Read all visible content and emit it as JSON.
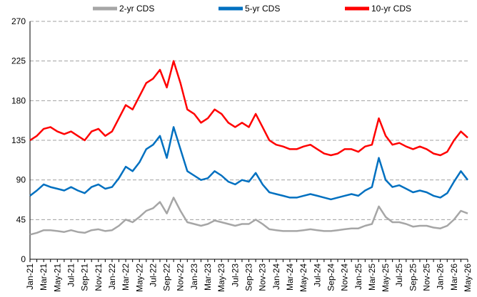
{
  "chart_data": {
    "type": "line",
    "categories": [
      "Jan-21",
      null,
      "Mar-21",
      null,
      "May-21",
      null,
      "Jul-21",
      null,
      "Sep-21",
      null,
      "Nov-21",
      null,
      "Jan-22",
      null,
      "Mar-22",
      null,
      "May-22",
      null,
      "Jul-22",
      null,
      "Sep-22",
      null,
      "Nov-22",
      null,
      "Jan-23",
      null,
      "Mar-23",
      null,
      "May-23",
      null,
      "Jul-23",
      null,
      "Sep-23",
      null,
      "Nov-23",
      null,
      "Jan-24",
      null,
      "Mar-24",
      null,
      "May-24",
      null,
      "Jul-24",
      null,
      "Sep-24",
      null,
      "Nov-24",
      null,
      "Jan-25",
      null,
      "Mar-25",
      null,
      "May-25",
      null,
      "Jul-25",
      null,
      "Sep-25",
      null,
      "Nov-25",
      null,
      "Jan-26",
      null,
      "Mar-26",
      null,
      "May-26"
    ],
    "series": [
      {
        "name": "2-yr CDS",
        "color": "#a6a6a6",
        "values": [
          28,
          30,
          33,
          33,
          32,
          31,
          33,
          31,
          30,
          33,
          34,
          32,
          33,
          38,
          45,
          42,
          48,
          55,
          58,
          65,
          52,
          70,
          55,
          42,
          40,
          38,
          40,
          44,
          42,
          40,
          38,
          40,
          40,
          45,
          40,
          34,
          33,
          32,
          32,
          32,
          33,
          34,
          33,
          32,
          32,
          33,
          34,
          35,
          35,
          38,
          40,
          60,
          48,
          42,
          42,
          40,
          37,
          38,
          38,
          36,
          35,
          38,
          45,
          55,
          52
        ]
      },
      {
        "name": "5-yr CDS",
        "color": "#0070c0",
        "values": [
          72,
          78,
          85,
          82,
          80,
          78,
          82,
          78,
          75,
          82,
          85,
          80,
          82,
          92,
          105,
          100,
          110,
          125,
          130,
          140,
          115,
          150,
          125,
          100,
          95,
          90,
          92,
          100,
          95,
          88,
          85,
          90,
          88,
          98,
          85,
          76,
          74,
          72,
          70,
          70,
          72,
          74,
          72,
          70,
          68,
          70,
          72,
          74,
          72,
          78,
          82,
          115,
          90,
          82,
          84,
          80,
          76,
          78,
          76,
          72,
          70,
          75,
          88,
          100,
          90
        ]
      },
      {
        "name": "10-yr CDS",
        "color": "#ff0000",
        "values": [
          135,
          140,
          148,
          150,
          145,
          142,
          145,
          140,
          135,
          145,
          148,
          140,
          145,
          160,
          175,
          170,
          185,
          200,
          205,
          215,
          195,
          225,
          200,
          170,
          165,
          155,
          160,
          170,
          165,
          155,
          150,
          155,
          150,
          165,
          150,
          135,
          130,
          128,
          125,
          125,
          128,
          130,
          125,
          120,
          118,
          120,
          125,
          125,
          122,
          128,
          130,
          160,
          140,
          130,
          132,
          128,
          125,
          128,
          125,
          120,
          118,
          122,
          135,
          145,
          138
        ]
      }
    ],
    "ylim": [
      0,
      270
    ],
    "yticks": [
      0,
      45,
      90,
      135,
      180,
      225,
      270
    ],
    "grid": true,
    "legend": "top"
  }
}
